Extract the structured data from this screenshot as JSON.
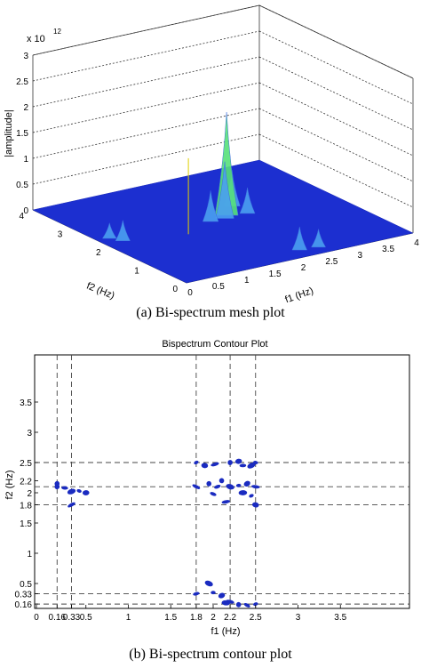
{
  "chart_data": [
    {
      "type": "surface",
      "caption": "(a) Bi-spectrum mesh plot",
      "zlabel": "|amplitude|",
      "xlabel": "f1 (Hz)",
      "ylabel": "f2 (Hz)",
      "exponent_label": "x 10",
      "exponent_power": "12",
      "xlim": [
        0,
        4
      ],
      "ylim": [
        0,
        4
      ],
      "zlim": [
        0,
        3
      ],
      "x_ticks": [
        "0",
        "0.5",
        "1",
        "1.5",
        "2",
        "2.5",
        "3",
        "3.5",
        "4"
      ],
      "y_ticks": [
        "0",
        "1",
        "2",
        "3",
        "4"
      ],
      "z_ticks": [
        "0",
        "0.5",
        "1",
        "1.5",
        "2",
        "2.5",
        "3"
      ],
      "colors": {
        "base": "#1c2fd0",
        "mid": "#4aa0f0",
        "peak": "#57e07a"
      },
      "peaks": [
        {
          "f1": 2.2,
          "f2": 2.2,
          "amplitude": 2.0
        },
        {
          "f1": 2.1,
          "f2": 2.1,
          "amplitude": 1.1
        },
        {
          "f1": 2.5,
          "f2": 2.5,
          "amplitude": 0.7
        },
        {
          "f1": 1.85,
          "f2": 2.1,
          "amplitude": 0.6
        },
        {
          "f1": 2.5,
          "f2": 2.1,
          "amplitude": 0.5
        },
        {
          "f1": 2.2,
          "f2": 0.3,
          "amplitude": 0.45
        },
        {
          "f1": 2.5,
          "f2": 0.25,
          "amplitude": 0.35
        },
        {
          "f1": 0.3,
          "f2": 2.1,
          "amplitude": 0.4
        },
        {
          "f1": 0.2,
          "f2": 2.3,
          "amplitude": 0.3
        }
      ]
    },
    {
      "type": "contour",
      "title": "Bispectrum Contour Plot",
      "caption": "(b) Bi-spectrum contour plot",
      "xlabel": "f1 (Hz)",
      "ylabel": "f2 (Hz)",
      "xlim": [
        0,
        4
      ],
      "ylim": [
        0,
        4
      ],
      "x_ticks": [
        "0",
        "0.16",
        "0.33",
        "0.5",
        "1",
        "1.5",
        "1.8",
        "2",
        "2.2",
        "2.5",
        "3",
        "3.5"
      ],
      "x_tick_values": [
        0,
        0.16,
        0.33,
        0.5,
        1,
        1.5,
        1.8,
        2,
        2.2,
        2.5,
        3,
        3.5
      ],
      "y_ticks": [
        "0.16",
        "0.33",
        "0.5",
        "1",
        "1.5",
        "1.8",
        "2",
        "2.2",
        "2.5",
        "3",
        "3.5"
      ],
      "y_tick_values": [
        0.16,
        0.33,
        0.5,
        1,
        1.5,
        1.8,
        2,
        2.2,
        2.5,
        3,
        3.5
      ],
      "vertical_lines": [
        0.16,
        0.33,
        1.8,
        2.2,
        2.5
      ],
      "horizontal_lines": [
        0.16,
        0.33,
        1.8,
        2.1,
        2.5
      ],
      "contour_color": "#1a2bc0",
      "blobs": [
        {
          "f1": 1.8,
          "f2": 2.5
        },
        {
          "f1": 1.9,
          "f2": 2.45
        },
        {
          "f1": 2.02,
          "f2": 2.47
        },
        {
          "f1": 2.2,
          "f2": 2.5
        },
        {
          "f1": 2.35,
          "f2": 2.45
        },
        {
          "f1": 2.45,
          "f2": 2.45
        },
        {
          "f1": 2.5,
          "f2": 2.5
        },
        {
          "f1": 2.3,
          "f2": 2.52
        },
        {
          "f1": 1.8,
          "f2": 2.1
        },
        {
          "f1": 1.95,
          "f2": 2.15
        },
        {
          "f1": 2.05,
          "f2": 2.1
        },
        {
          "f1": 2.2,
          "f2": 2.1
        },
        {
          "f1": 2.3,
          "f2": 2.12
        },
        {
          "f1": 2.4,
          "f2": 2.15
        },
        {
          "f1": 2.5,
          "f2": 2.1
        },
        {
          "f1": 2.1,
          "f2": 2.2
        },
        {
          "f1": 2.0,
          "f2": 1.98
        },
        {
          "f1": 2.35,
          "f2": 2.0
        },
        {
          "f1": 2.45,
          "f2": 1.95
        },
        {
          "f1": 2.5,
          "f2": 1.8
        },
        {
          "f1": 2.15,
          "f2": 1.85
        },
        {
          "f1": 0.16,
          "f2": 2.1
        },
        {
          "f1": 0.25,
          "f2": 2.08
        },
        {
          "f1": 0.33,
          "f2": 2.02
        },
        {
          "f1": 0.42,
          "f2": 2.03
        },
        {
          "f1": 0.5,
          "f2": 2.0
        },
        {
          "f1": 0.33,
          "f2": 1.8
        },
        {
          "f1": 0.16,
          "f2": 2.15
        },
        {
          "f1": 1.8,
          "f2": 0.33
        },
        {
          "f1": 1.95,
          "f2": 0.5
        },
        {
          "f1": 2.0,
          "f2": 0.35
        },
        {
          "f1": 2.1,
          "f2": 0.3
        },
        {
          "f1": 2.2,
          "f2": 0.2
        },
        {
          "f1": 2.3,
          "f2": 0.15
        },
        {
          "f1": 2.4,
          "f2": 0.14
        },
        {
          "f1": 2.15,
          "f2": 0.18
        },
        {
          "f1": 2.5,
          "f2": 0.16
        }
      ]
    }
  ]
}
